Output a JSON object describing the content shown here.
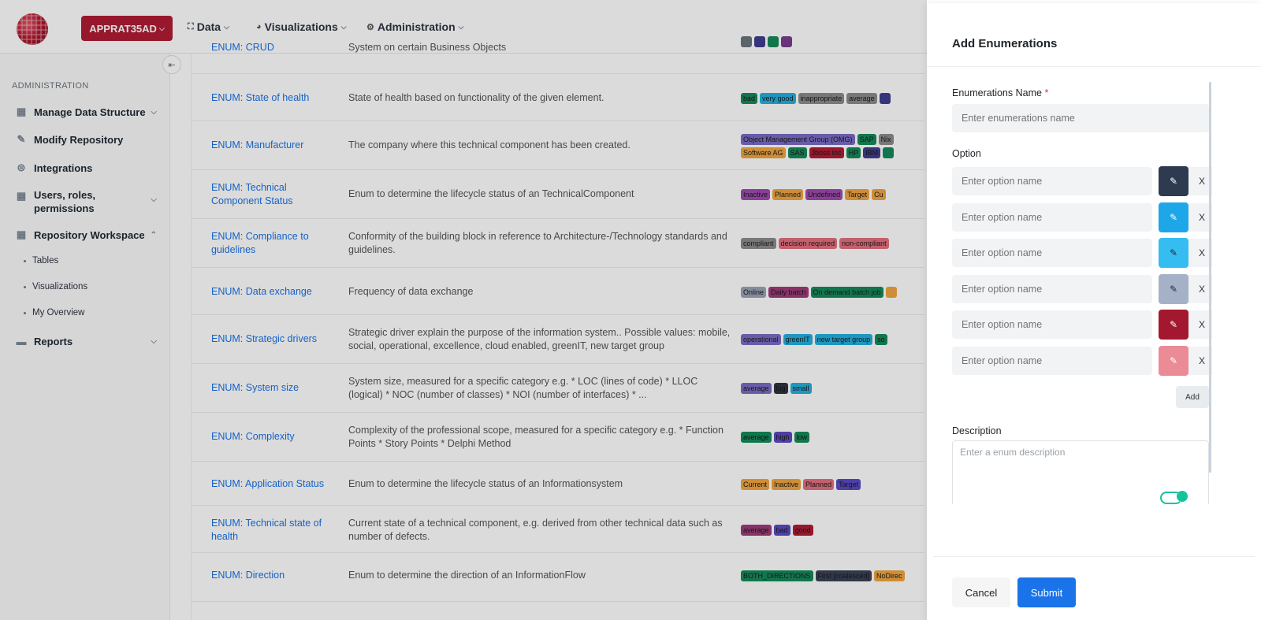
{
  "header": {
    "workspace": "APPRAT35AD",
    "nav": [
      {
        "label": "Data",
        "icon": "sitemap-icon"
      },
      {
        "label": "Visualizations",
        "icon": "pie-chart-icon"
      },
      {
        "label": "Administration",
        "icon": "cogs-icon"
      }
    ]
  },
  "sidebar": {
    "section": "ADMINISTRATION",
    "items": [
      {
        "label": "Manage Data Structure",
        "icon": "grid-icon"
      },
      {
        "label": "Modify Repository",
        "icon": "edit-icon"
      },
      {
        "label": "Integrations",
        "icon": "toggle-icon"
      },
      {
        "label": "Users, roles, permissions",
        "icon": "users-grid-icon"
      },
      {
        "label": "Repository Workspace",
        "icon": "grid-icon"
      },
      {
        "label": "Reports",
        "icon": "folder-icon"
      }
    ],
    "sub_items": [
      "Tables",
      "Visualizations",
      "My Overview"
    ]
  },
  "table": {
    "rows": [
      {
        "name": "ENUM: CRUD",
        "desc": "System on certain Business Objects",
        "tags": [
          {
            "t": "",
            "c": "#6c757d"
          },
          {
            "t": "",
            "c": "#3f3d8f"
          },
          {
            "t": "",
            "c": "#168a5a"
          },
          {
            "t": "",
            "c": "#7a3d8f"
          }
        ]
      },
      {
        "name": "ENUM: State of health",
        "desc": "State of health based on functionality of the given element.",
        "tags": [
          {
            "t": "bad",
            "c": "#168a5a"
          },
          {
            "t": "very good",
            "c": "#24b0e0"
          },
          {
            "t": "inappropriate",
            "c": "#8c8c8c"
          },
          {
            "t": "average",
            "c": "#8c8c8c"
          },
          {
            "t": "",
            "c": "#3f3d8f"
          }
        ]
      },
      {
        "name": "ENUM: Manufacturer",
        "desc": "The company where this technical component has been created.",
        "tags": [
          {
            "t": "Object Management Group (OMG)",
            "c": "#7a6cc4"
          },
          {
            "t": "SAP",
            "c": "#168a5a"
          },
          {
            "t": "Nix",
            "c": "#8c8c8c"
          },
          {
            "t": "Software AG",
            "c": "#f0a540"
          },
          {
            "t": "SAS",
            "c": "#168a5a"
          },
          {
            "t": "Jboss Inc",
            "c": "#b01c34"
          },
          {
            "t": "HP",
            "c": "#168a5a"
          },
          {
            "t": "IBM",
            "c": "#3f3d8f"
          },
          {
            "t": "",
            "c": "#168a5a"
          }
        ]
      },
      {
        "name": "ENUM: Technical Component Status",
        "desc": "Enum to determine the lifecycle status of an TechnicalComponent",
        "tags": [
          {
            "t": "Inactive",
            "c": "#a04ab0"
          },
          {
            "t": "Planned",
            "c": "#f0a540"
          },
          {
            "t": "Undefined",
            "c": "#a04ab0"
          },
          {
            "t": "Target",
            "c": "#f0a540"
          },
          {
            "t": "Cu",
            "c": "#f0a540"
          }
        ]
      },
      {
        "name": "ENUM: Compliance to guidelines",
        "desc": "Conformity of the building block in reference to Architecture-/Technology standards and guidelines.",
        "tags": [
          {
            "t": "compliant",
            "c": "#8c8c8c"
          },
          {
            "t": "decision required",
            "c": "#e5707e"
          },
          {
            "t": "non-compliant",
            "c": "#e5707e"
          }
        ]
      },
      {
        "name": "ENUM: Data exchange",
        "desc": "Frequency of data exchange",
        "tags": [
          {
            "t": "Online",
            "c": "#9aa3b5"
          },
          {
            "t": "Daily batch",
            "c": "#a03b7a"
          },
          {
            "t": "On demand batch job",
            "c": "#168a5a"
          },
          {
            "t": "",
            "c": "#f0a540"
          }
        ]
      },
      {
        "name": "ENUM: Strategic drivers",
        "desc": "Strategic driver explain the purpose of the information system.. Possible values: mobile, social, operational, excellence, cloud enabled, greenIT, new target group",
        "tags": [
          {
            "t": "operational",
            "c": "#7a6cc4"
          },
          {
            "t": "greenIT",
            "c": "#24b0e0"
          },
          {
            "t": "new target group",
            "c": "#24b0e0"
          },
          {
            "t": "so",
            "c": "#168a5a"
          }
        ]
      },
      {
        "name": "ENUM: System size",
        "desc": "System size, measured for a specific category e.g. * LOC (lines of code) * LLOC (logical) * NOC (number of classes) * NOI (number of interfaces) * ...",
        "tags": [
          {
            "t": "average",
            "c": "#7a6cc4"
          },
          {
            "t": "big",
            "c": "#2e3440"
          },
          {
            "t": "small",
            "c": "#24b0e0"
          }
        ]
      },
      {
        "name": "ENUM: Complexity",
        "desc": "Complexity of the professional scope, measured for a specific category e.g. * Function Points * Story Points * Delphi Method",
        "tags": [
          {
            "t": "average",
            "c": "#168a5a"
          },
          {
            "t": "high",
            "c": "#5a4ac4"
          },
          {
            "t": "low",
            "c": "#168a5a"
          }
        ]
      },
      {
        "name": "ENUM: Application Status",
        "desc": "Enum to determine the lifecycle status of an Informationsystem",
        "tags": [
          {
            "t": "Current",
            "c": "#f0a540"
          },
          {
            "t": "Inactive",
            "c": "#f0a540"
          },
          {
            "t": "Planned",
            "c": "#e5707e"
          },
          {
            "t": "Target",
            "c": "#5a4ac4"
          }
        ]
      },
      {
        "name": "ENUM: Technical state of health",
        "desc": "Current state of a technical component, e.g. derived from other technical data such as number of defects.",
        "tags": [
          {
            "t": "average",
            "c": "#a03b7a"
          },
          {
            "t": "bad",
            "c": "#5a4ac4"
          },
          {
            "t": "good",
            "c": "#b01c34"
          }
        ]
      },
      {
        "name": "ENUM: Direction",
        "desc": "Enum to determine the direction of an InformationFlow",
        "tags": [
          {
            "t": "BOTH_DIRECTIONS",
            "c": "#168a5a"
          },
          {
            "t": "First [coalesced]",
            "c": "#3a4256"
          },
          {
            "t": "NoDirec",
            "c": "#f0a540"
          }
        ]
      }
    ]
  },
  "drawer": {
    "title": "Add Enumerations",
    "name_label": "Enumerations Name",
    "required_mark": "*",
    "name_placeholder": "Enter enumerations name",
    "option_label": "Option",
    "option_placeholder": "Enter option name",
    "options": [
      {
        "color": "#2e3a4f",
        "icon": "paint-brush-icon"
      },
      {
        "color": "#1ea7e8",
        "icon": "paint-brush-icon"
      },
      {
        "color": "#35bdf2",
        "icon": "paint-brush-icon"
      },
      {
        "color": "#a5b1c6",
        "icon": "paint-brush-icon"
      },
      {
        "color": "#a4182f",
        "icon": "paint-brush-icon"
      },
      {
        "color": "#ea8b96",
        "icon": "paint-brush-icon"
      }
    ],
    "remove_label": "X",
    "add_label": "Add",
    "description_label": "Description",
    "description_placeholder": "Enter a enum description",
    "cancel": "Cancel",
    "submit": "Submit"
  },
  "colors": {
    "brand": "#b01c34",
    "primary": "#1a73e8"
  }
}
